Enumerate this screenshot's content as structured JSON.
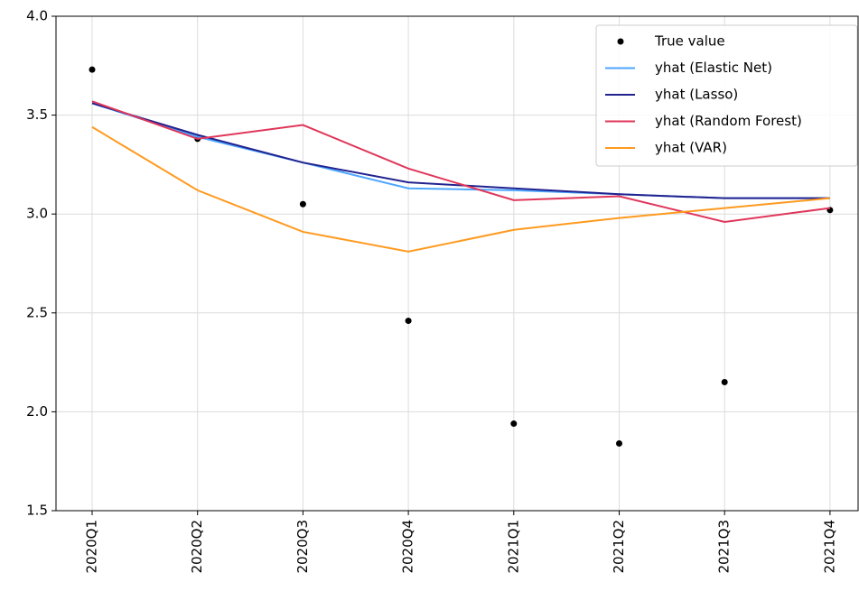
{
  "chart_data": {
    "type": "line",
    "categories": [
      "2020Q1",
      "2020Q2",
      "2020Q3",
      "2020Q4",
      "2021Q1",
      "2021Q2",
      "2021Q3",
      "2021Q4"
    ],
    "series": [
      {
        "name": "True value",
        "color": "#000000",
        "marker": "dot",
        "values": [
          3.73,
          3.38,
          3.05,
          2.46,
          1.94,
          1.84,
          2.15,
          3.02
        ]
      },
      {
        "name": "yhat (Elastic Net)",
        "color": "#4da6ff",
        "values": [
          3.56,
          3.39,
          3.26,
          3.13,
          3.12,
          3.1,
          3.08,
          3.08
        ]
      },
      {
        "name": "yhat (Lasso)",
        "color": "#22238f",
        "values": [
          3.56,
          3.4,
          3.26,
          3.16,
          3.13,
          3.1,
          3.08,
          3.08
        ]
      },
      {
        "name": "yhat (Random Forest)",
        "color": "#e0365a",
        "values": [
          3.57,
          3.38,
          3.45,
          3.23,
          3.07,
          3.09,
          2.96,
          3.03
        ]
      },
      {
        "name": "yhat (VAR)",
        "color": "#ff9a1f",
        "values": [
          3.44,
          3.12,
          2.91,
          2.81,
          2.92,
          2.98,
          3.03,
          3.08
        ]
      }
    ],
    "ylim": [
      1.5,
      4.0
    ],
    "yticks": [
      1.5,
      {
        "value": 2,
        "label": "2.0"
      },
      2.5,
      {
        "value": 3,
        "label": "3.0"
      },
      3.5,
      {
        "value": 4,
        "label": "4.0"
      }
    ],
    "grid": true,
    "legend": "upper right"
  }
}
